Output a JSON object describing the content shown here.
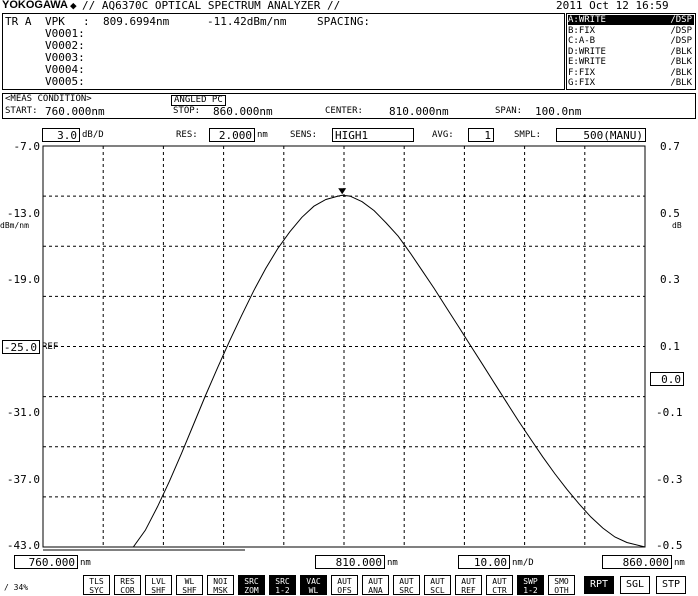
{
  "header": {
    "brand": "YOKOGAWA",
    "model": "// AQ6370C OPTICAL SPECTRUM ANALYZER //",
    "datetime": "2011 Oct 12 16:59"
  },
  "marker_panel": {
    "trace_label": "TR A",
    "mode": "VPK",
    "colon": ":",
    "wavelength": "809.6994nm",
    "level": "-11.42dBm/nm",
    "spacing_label": "SPACING:",
    "markers": [
      "V0001:",
      "V0002:",
      "V0003:",
      "V0004:",
      "V0005:"
    ]
  },
  "traces": [
    {
      "id": "A",
      "mode": "WRITE",
      "disp": "/DSP",
      "active": true
    },
    {
      "id": "B",
      "mode": "FIX",
      "disp": "/DSP",
      "active": false
    },
    {
      "id": "C",
      "mode": "A-B",
      "disp": "/DSP",
      "active": false
    },
    {
      "id": "D",
      "mode": "WRITE",
      "disp": "/BLK",
      "active": false
    },
    {
      "id": "E",
      "mode": "WRITE",
      "disp": "/BLK",
      "active": false
    },
    {
      "id": "F",
      "mode": "FIX",
      "disp": "/BLK",
      "active": false
    },
    {
      "id": "G",
      "mode": "FIX",
      "disp": "/BLK",
      "active": false
    }
  ],
  "meas": {
    "title": "<MEAS CONDITION>",
    "connector": "ANGLED PC",
    "start_label": "START:",
    "start": "760.000nm",
    "stop_label": "STOP:",
    "stop": "860.000nm",
    "center_label": "CENTER:",
    "center": "810.000nm",
    "span_label": "SPAN:",
    "span": "100.0nm"
  },
  "settings": {
    "scale_value": "3.0",
    "scale_unit": "dB/D",
    "res_label": "RES:",
    "res_value": "2.000",
    "res_unit": "nm",
    "sens_label": "SENS:",
    "sens_value": "HIGH1",
    "avg_label": "AVG:",
    "avg_value": "1",
    "smpl_label": "SMPL:",
    "smpl_value": "500(MANU)"
  },
  "axis": {
    "left_unit": "dBm/nm",
    "right_unit": "dB",
    "ref_value": "-25.0",
    "ref_label": "REF",
    "right_ref_value": "0.0",
    "x_start": "760.000",
    "x_center": "810.000",
    "x_perdiv": "10.00",
    "x_perdiv_unit": "nm/D",
    "x_stop": "860.000",
    "nm": "nm"
  },
  "footer": {
    "progress_text": "/ 34%",
    "softkeys": [
      {
        "l1": "TLS",
        "l2": "SYC",
        "on": false
      },
      {
        "l1": "RES",
        "l2": "COR",
        "on": false
      },
      {
        "l1": "LVL",
        "l2": "SHF",
        "on": false
      },
      {
        "l1": "WL",
        "l2": "SHF",
        "on": false
      },
      {
        "l1": "NOI",
        "l2": "MSK",
        "on": false
      },
      {
        "l1": "SRC",
        "l2": "ZOM",
        "on": true
      },
      {
        "l1": "SRC",
        "l2": "1-2",
        "on": true
      },
      {
        "l1": "VAC",
        "l2": "WL",
        "on": true
      },
      {
        "l1": "AUT",
        "l2": "OFS",
        "on": false
      },
      {
        "l1": "AUT",
        "l2": "ANA",
        "on": false
      },
      {
        "l1": "AUT",
        "l2": "SRC",
        "on": false
      },
      {
        "l1": "AUT",
        "l2": "SCL",
        "on": false
      },
      {
        "l1": "AUT",
        "l2": "REF",
        "on": false
      },
      {
        "l1": "AUT",
        "l2": "CTR",
        "on": false
      },
      {
        "l1": "SWP",
        "l2": "1-2",
        "on": true
      },
      {
        "l1": "SMO",
        "l2": "OTH",
        "on": false
      }
    ],
    "rpt": "RPT",
    "sgl": "SGL",
    "stp": "STP"
  },
  "chart_data": {
    "type": "line",
    "xlim": [
      760,
      860
    ],
    "ylim": [
      -43.0,
      -7.0
    ],
    "y_right_lim": [
      -0.5,
      0.7
    ],
    "y_ticks": [
      "-7.0",
      "-13.0",
      "-19.0",
      "-25.0",
      "-31.0",
      "-37.0",
      "-43.0"
    ],
    "y_right_ticks": [
      "0.7",
      "0.5",
      "0.3",
      "0.1",
      "-0.1",
      "-0.3",
      "-0.5"
    ],
    "grid": true,
    "marker": {
      "x": 809.7,
      "y": -11.42
    },
    "series": [
      {
        "color": "#000000",
        "x": [
          760,
          775,
          777,
          779,
          781,
          783,
          785,
          787,
          789,
          791,
          793,
          795,
          797,
          799,
          801,
          803,
          805,
          807,
          809,
          809.7,
          811,
          813,
          815,
          817,
          819,
          821,
          823,
          825,
          827,
          829,
          831,
          833,
          835,
          837,
          839,
          841,
          843,
          845,
          847,
          849,
          851,
          853,
          855,
          857,
          860
        ],
        "y": [
          -43.0,
          -43.0,
          -41.5,
          -39.4,
          -37.1,
          -34.6,
          -32.0,
          -29.4,
          -26.9,
          -24.5,
          -22.2,
          -20.0,
          -18.0,
          -16.2,
          -14.7,
          -13.4,
          -12.4,
          -11.8,
          -11.5,
          -11.42,
          -11.5,
          -12.0,
          -12.8,
          -13.9,
          -15.1,
          -16.6,
          -18.2,
          -19.8,
          -21.5,
          -23.2,
          -24.9,
          -26.6,
          -28.3,
          -30.0,
          -31.7,
          -33.3,
          -34.9,
          -36.4,
          -37.8,
          -39.1,
          -40.3,
          -41.3,
          -42.1,
          -42.6,
          -43.0
        ]
      }
    ]
  }
}
